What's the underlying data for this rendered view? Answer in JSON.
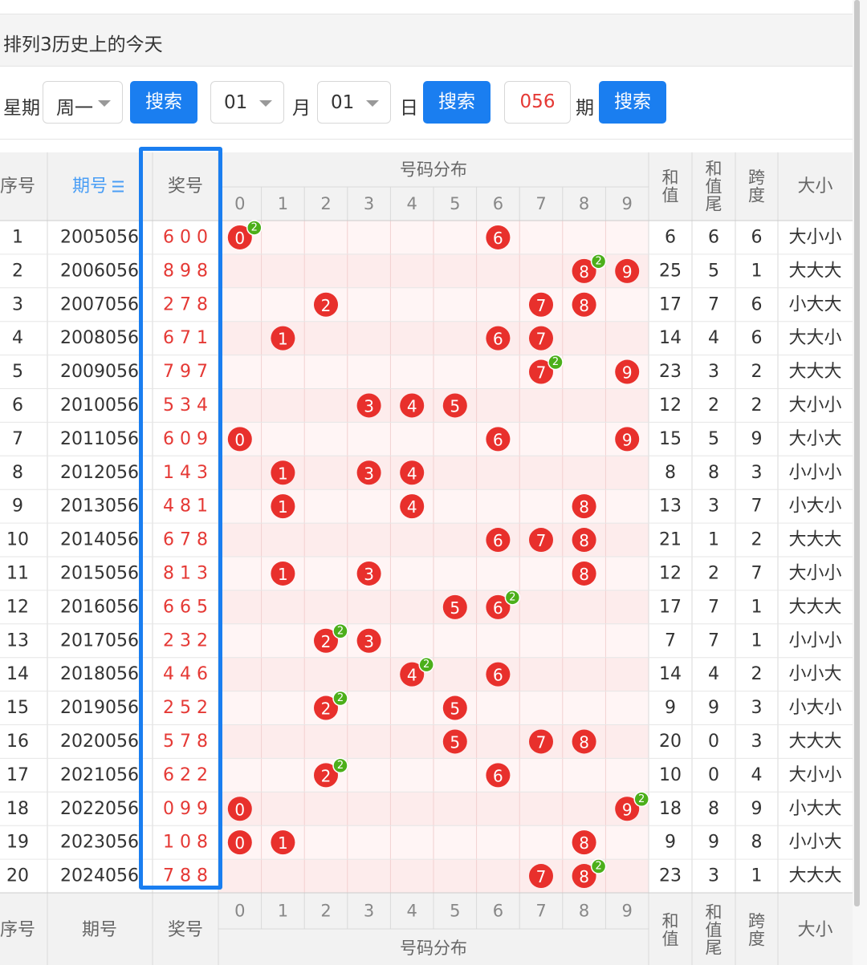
{
  "header": {
    "title": "排列3历史上的今天"
  },
  "search": {
    "weekday_label": "星期",
    "weekday_value": "周一",
    "search_btn": "搜索",
    "month_value": "01",
    "month_label": "月",
    "day_value": "01",
    "day_label": "日",
    "issue_value": "056",
    "issue_label": "期"
  },
  "table": {
    "headers": {
      "seq": "序号",
      "issue": "期号",
      "issue_sort_icon": "sort-icon",
      "prize": "奖号",
      "distribution": "号码分布",
      "sum": "和值",
      "sum_tail": "和值尾",
      "span": "跨度",
      "size": "大小"
    },
    "digits": [
      "0",
      "1",
      "2",
      "3",
      "4",
      "5",
      "6",
      "7",
      "8",
      "9"
    ],
    "rows": [
      {
        "seq": "1",
        "issue": "2005056",
        "prize": "6 0 0",
        "sum": "6",
        "tail": "6",
        "span": "6",
        "size": "大小小"
      },
      {
        "seq": "2",
        "issue": "2006056",
        "prize": "8 9 8",
        "sum": "25",
        "tail": "5",
        "span": "1",
        "size": "大大大"
      },
      {
        "seq": "3",
        "issue": "2007056",
        "prize": "2 7 8",
        "sum": "17",
        "tail": "7",
        "span": "6",
        "size": "小大大"
      },
      {
        "seq": "4",
        "issue": "2008056",
        "prize": "6 7 1",
        "sum": "14",
        "tail": "4",
        "span": "6",
        "size": "大大小"
      },
      {
        "seq": "5",
        "issue": "2009056",
        "prize": "7 9 7",
        "sum": "23",
        "tail": "3",
        "span": "2",
        "size": "大大大"
      },
      {
        "seq": "6",
        "issue": "2010056",
        "prize": "5 3 4",
        "sum": "12",
        "tail": "2",
        "span": "2",
        "size": "大小小"
      },
      {
        "seq": "7",
        "issue": "2011056",
        "prize": "6 0 9",
        "sum": "15",
        "tail": "5",
        "span": "9",
        "size": "大小大"
      },
      {
        "seq": "8",
        "issue": "2012056",
        "prize": "1 4 3",
        "sum": "8",
        "tail": "8",
        "span": "3",
        "size": "小小小"
      },
      {
        "seq": "9",
        "issue": "2013056",
        "prize": "4 8 1",
        "sum": "13",
        "tail": "3",
        "span": "7",
        "size": "小大小"
      },
      {
        "seq": "10",
        "issue": "2014056",
        "prize": "6 7 8",
        "sum": "21",
        "tail": "1",
        "span": "2",
        "size": "大大大"
      },
      {
        "seq": "11",
        "issue": "2015056",
        "prize": "8 1 3",
        "sum": "12",
        "tail": "2",
        "span": "7",
        "size": "大小小"
      },
      {
        "seq": "12",
        "issue": "2016056",
        "prize": "6 6 5",
        "sum": "17",
        "tail": "7",
        "span": "1",
        "size": "大大大"
      },
      {
        "seq": "13",
        "issue": "2017056",
        "prize": "2 3 2",
        "sum": "7",
        "tail": "7",
        "span": "1",
        "size": "小小小"
      },
      {
        "seq": "14",
        "issue": "2018056",
        "prize": "4 4 6",
        "sum": "14",
        "tail": "4",
        "span": "2",
        "size": "小小大"
      },
      {
        "seq": "15",
        "issue": "2019056",
        "prize": "2 5 2",
        "sum": "9",
        "tail": "9",
        "span": "3",
        "size": "小大小"
      },
      {
        "seq": "16",
        "issue": "2020056",
        "prize": "5 7 8",
        "sum": "20",
        "tail": "0",
        "span": "3",
        "size": "大大大"
      },
      {
        "seq": "17",
        "issue": "2021056",
        "prize": "6 2 2",
        "sum": "10",
        "tail": "0",
        "span": "4",
        "size": "大小小"
      },
      {
        "seq": "18",
        "issue": "2022056",
        "prize": "0 9 9",
        "sum": "18",
        "tail": "8",
        "span": "9",
        "size": "小大大"
      },
      {
        "seq": "19",
        "issue": "2023056",
        "prize": "1 0 8",
        "sum": "9",
        "tail": "9",
        "span": "8",
        "size": "小小大"
      },
      {
        "seq": "20",
        "issue": "2024056",
        "prize": "7 8 8",
        "sum": "23",
        "tail": "3",
        "span": "1",
        "size": "大大大"
      }
    ],
    "dup_badge": "2"
  },
  "colors": {
    "accent": "#1a7ef0",
    "ball": "#e8302c",
    "badge": "#4caf1a",
    "prize_text": "#e53935",
    "cell_tint": "#fdeeee"
  }
}
